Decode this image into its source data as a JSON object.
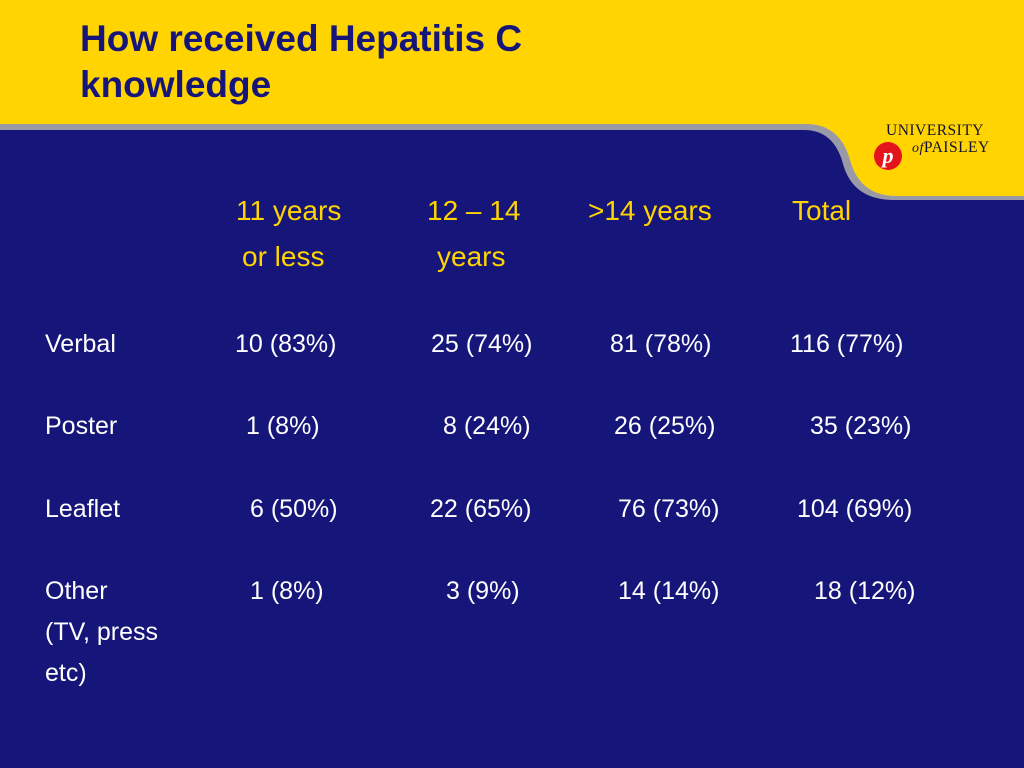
{
  "slide": {
    "title_line1": "How received Hepatitis C",
    "title_line2": "knowledge",
    "colors": {
      "banner": "#ffd400",
      "panel": "#15157a",
      "header_text": "#ffd400",
      "body_text": "#ffffff"
    }
  },
  "logo": {
    "line1": "UNIVERSITY",
    "of": "of",
    "line2": "PAISLEY",
    "mark": "p"
  },
  "table": {
    "columns": [
      {
        "line1": "11 years",
        "line2": "or less"
      },
      {
        "line1": "12 – 14",
        "line2": "years"
      },
      {
        "line1": ">14 years",
        "line2": ""
      },
      {
        "line1": "Total",
        "line2": ""
      }
    ],
    "rows": [
      {
        "label": [
          "Verbal"
        ],
        "values": [
          "10 (83%)",
          "25 (74%)",
          "81 (78%)",
          "116 (77%)"
        ]
      },
      {
        "label": [
          "Poster"
        ],
        "values": [
          "1 (8%)",
          "8 (24%)",
          "26 (25%)",
          "35 (23%)"
        ]
      },
      {
        "label": [
          "Leaflet"
        ],
        "values": [
          "6 (50%)",
          "22 (65%)",
          "76 (73%)",
          "104 (69%)"
        ]
      },
      {
        "label": [
          "Other",
          "(TV, press",
          "etc)"
        ],
        "values": [
          "1 (8%)",
          "3 (9%)",
          "14 (14%)",
          "18 (12%)"
        ]
      }
    ]
  }
}
